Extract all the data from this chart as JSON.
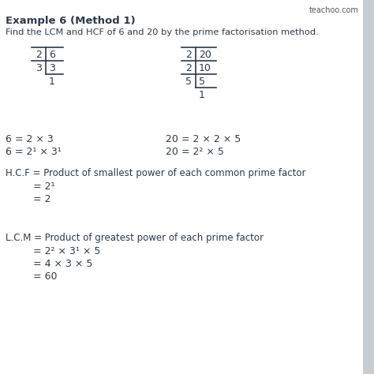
{
  "title": "Example 6 (Method 1)",
  "subtitle": "Find the LCM and HCF of 6 and 20 by the prime factorisation method.",
  "watermark": "teachoo.com",
  "bg_color": "#ffffff",
  "text_color": "#2d3a4a",
  "sidebar_color": "#c8cdd3",
  "factorization_6_line1": "6 = 2 × 3",
  "factorization_6_line2": "6 = 2¹ × 3¹",
  "factorization_20_line1": "20 = 2 × 2 × 5",
  "factorization_20_line2": "20 = 2² × 5",
  "hcf_label": "H.C.F = Product of smallest power of each common prime factor",
  "hcf_step1": "= 2¹",
  "hcf_step2": "= 2",
  "lcm_label": "L.C.M = Product of greatest power of each prime factor",
  "lcm_step1": "= 2² × 3¹ × 5",
  "lcm_step2": "= 4 × 3 × 5",
  "lcm_step3": "= 60",
  "fig_width": 4.74,
  "fig_height": 4.74,
  "dpi": 100
}
